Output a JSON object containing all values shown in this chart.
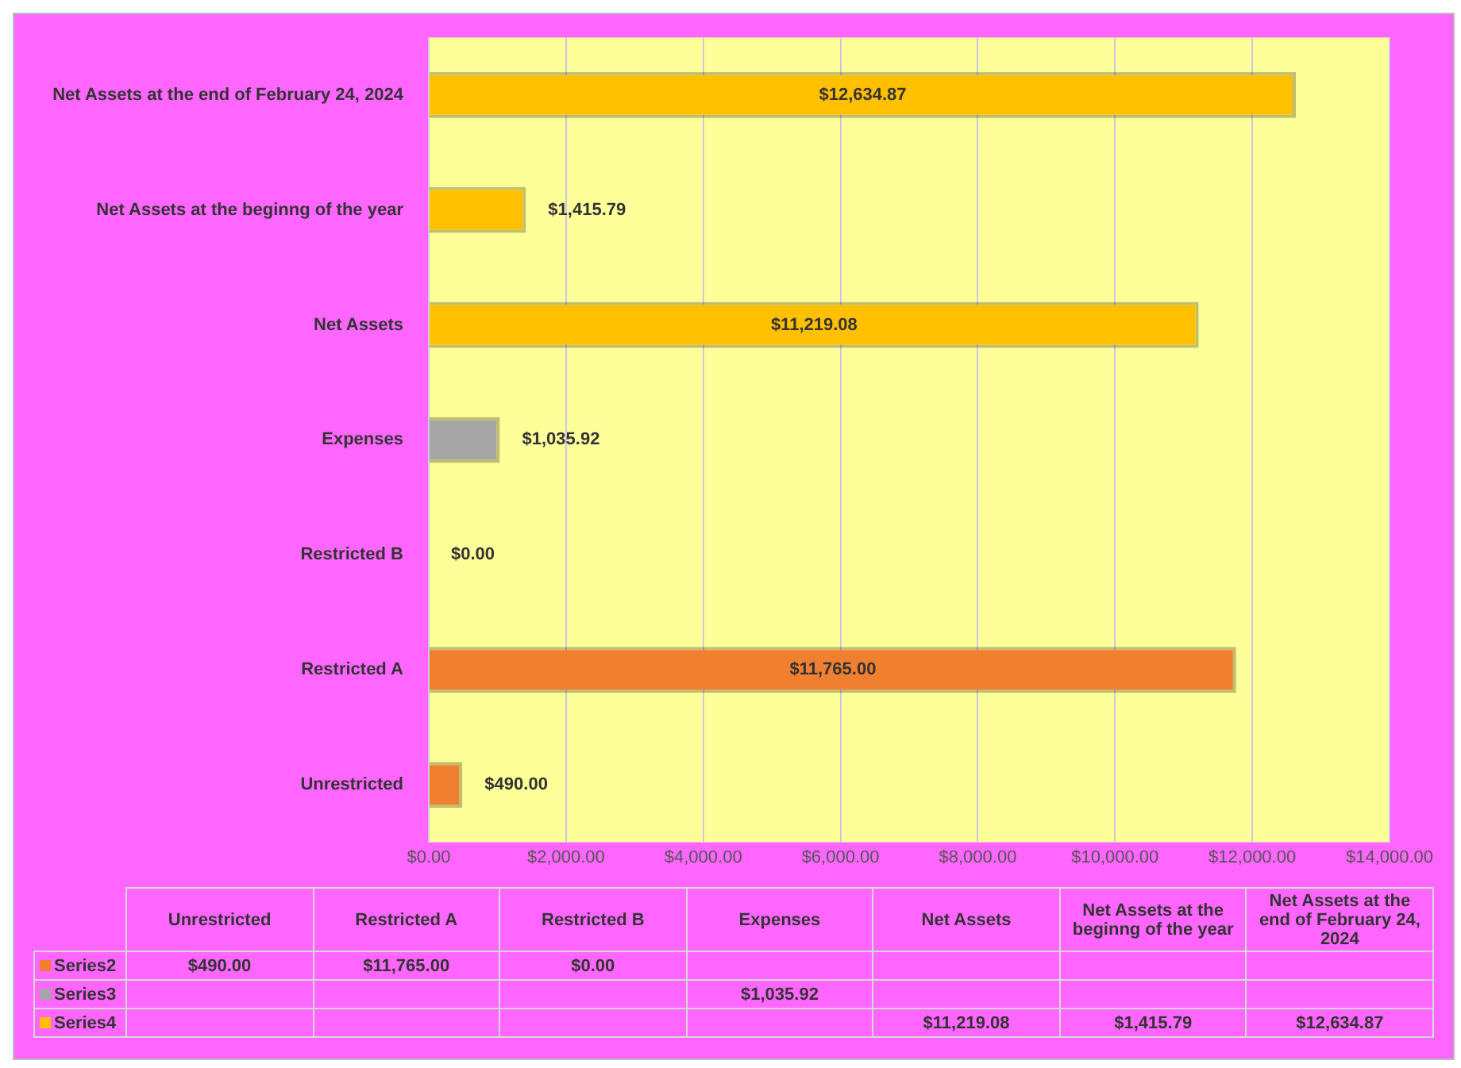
{
  "chart_data": {
    "type": "bar",
    "orientation": "horizontal",
    "stacked": true,
    "categories": [
      "Net Assets at the end of February 24, 2024",
      "Net Assets at the beginng of the year",
      "Net Assets",
      "Expenses",
      "Restricted B",
      "Restricted A",
      "Unrestricted"
    ],
    "series": [
      {
        "name": "Series2",
        "color": "#f07f30",
        "values": [
          null,
          null,
          null,
          null,
          0,
          11765,
          490
        ],
        "value_labels": [
          null,
          null,
          null,
          null,
          "$0.00",
          "$11,765.00",
          "$490.00"
        ]
      },
      {
        "name": "Series3",
        "color": "#a6a6a6",
        "values": [
          null,
          null,
          null,
          1035.92,
          null,
          null,
          null
        ],
        "value_labels": [
          null,
          null,
          null,
          "$1,035.92",
          null,
          null,
          null
        ]
      },
      {
        "name": "Series4",
        "color": "#ffc000",
        "values": [
          12634.87,
          1415.79,
          11219.08,
          null,
          null,
          null,
          null
        ],
        "value_labels": [
          "$12,634.87",
          "$1,415.79",
          "$11,219.08",
          null,
          null,
          null,
          null
        ]
      }
    ],
    "xlim": [
      0,
      14000
    ],
    "xticks": [
      {
        "value": 0,
        "label": "$0.00"
      },
      {
        "value": 2000,
        "label": "$2,000.00"
      },
      {
        "value": 4000,
        "label": "$4,000.00"
      },
      {
        "value": 6000,
        "label": "$6,000.00"
      },
      {
        "value": 8000,
        "label": "$8,000.00"
      },
      {
        "value": 10000,
        "label": "$10,000.00"
      },
      {
        "value": 12000,
        "label": "$12,000.00"
      },
      {
        "value": 14000,
        "label": "$14,000.00"
      }
    ],
    "grid": "x",
    "legend": "bottom"
  }
}
